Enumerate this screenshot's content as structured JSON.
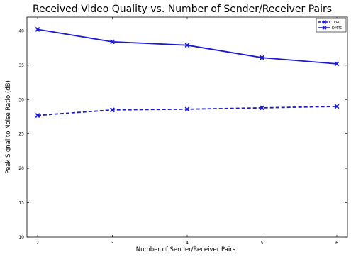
{
  "chart_data": {
    "type": "line",
    "title": "Received Video Quality vs. Number of Sender/Receiver Pairs",
    "xlabel": "Number of Sender/Receiver Pairs",
    "ylabel": "Peak Signal to Noise Ratio (dB)",
    "xlim": [
      2,
      6
    ],
    "ylim": [
      10,
      42
    ],
    "xticks": [
      "2",
      "3",
      "4",
      "5",
      "6"
    ],
    "yticks": [
      "10",
      "15",
      "20",
      "25",
      "30",
      "35",
      "40"
    ],
    "x": [
      2,
      3,
      4,
      5,
      6
    ],
    "grid": false,
    "legend_position": "top-right",
    "series": [
      {
        "name": "TFRC",
        "values": [
          27.7,
          28.5,
          28.6,
          28.8,
          29.0
        ],
        "color": "#1a1ad4",
        "line_style": "dashed",
        "marker": "x"
      },
      {
        "name": "DMRC",
        "values": [
          40.2,
          38.4,
          37.9,
          36.1,
          35.2
        ],
        "color": "#1a1ad4",
        "line_style": "solid",
        "marker": "x"
      }
    ]
  }
}
